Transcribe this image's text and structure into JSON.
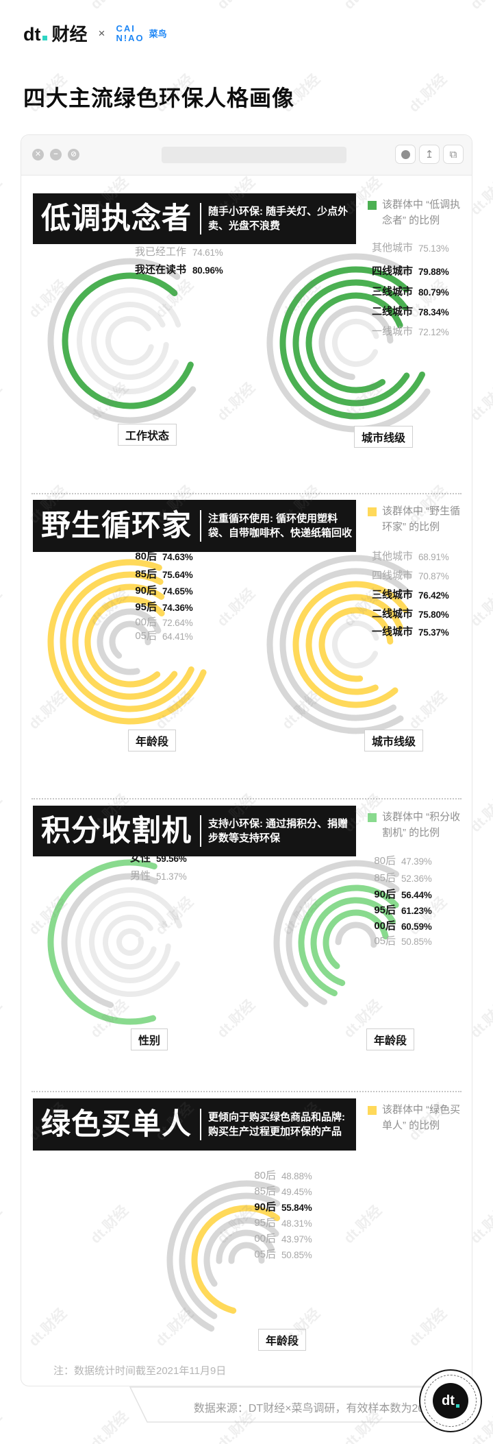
{
  "header": {
    "dt_letters": "dt",
    "dt_name": "财经",
    "separator": "×",
    "cainiao_line1": "CAI",
    "cainiao_line2": "N!AO",
    "cainiao_name": "菜鸟"
  },
  "title": "四大主流绿色环保人格画像",
  "browser_bar": {
    "close": "✕",
    "minimize": "−",
    "blocked": "⊘",
    "share": "↥",
    "tabs": "⧉"
  },
  "watermark_text": "dt.财经",
  "colors": {
    "green": "#4bb052",
    "light_green": "#89da8e",
    "yellow": "#ffd95a",
    "grey_ring": "#d7d7d7",
    "deco_ring": "#ebebeb",
    "black_box": "#141414",
    "teal": "#2fd5c3",
    "cainiao_blue": "#1d86f5"
  },
  "sections": [
    {
      "title": "低调执念者",
      "description": "随手小环保: 随手关灯、少点外卖、光盘不浪费",
      "legend": "该群体中 “低调执念者” 的比例",
      "accent_color": "#4bb052"
    },
    {
      "title": "野生循环家",
      "description": "注重循环使用: 循环使用塑料袋、自带咖啡杯、快递纸箱回收",
      "legend": "该群体中 “野生循环家” 的比例",
      "accent_color": "#ffd95a"
    },
    {
      "title": "积分收割机",
      "description": "支持小环保: 通过捐积分、捐赠步数等支持环保",
      "legend": "该群体中 “积分收割机” 的比例",
      "accent_color": "#89da8e"
    },
    {
      "title": "绿色买单人",
      "description": "更倾向于购买绿色商品和品牌: 购买生产过程更加环保的产品",
      "legend": "该群体中 “绿色买单人” 的比例",
      "accent_color": "#ffd95a"
    }
  ],
  "chart_data": [
    {
      "section": "低调执念者",
      "type": "radial-bar",
      "title": "工作状态",
      "unit": "%",
      "categories": [
        "我已经工作",
        "我还在读书"
      ],
      "values": [
        74.61,
        80.96
      ],
      "highlighted": [
        false,
        true
      ]
    },
    {
      "section": "低调执念者",
      "type": "radial-bar",
      "title": "城市线级",
      "unit": "%",
      "categories": [
        "其他城市",
        "四线城市",
        "三线城市",
        "二线城市",
        "一线城市"
      ],
      "values": [
        75.13,
        79.88,
        80.79,
        78.34,
        72.12
      ],
      "highlighted": [
        false,
        true,
        true,
        true,
        false
      ]
    },
    {
      "section": "野生循环家",
      "type": "radial-bar",
      "title": "年龄段",
      "unit": "%",
      "categories": [
        "80后",
        "85后",
        "90后",
        "95后",
        "00后",
        "05后"
      ],
      "values": [
        74.63,
        75.64,
        74.65,
        74.36,
        72.64,
        64.41
      ],
      "highlighted": [
        true,
        true,
        true,
        true,
        false,
        false
      ]
    },
    {
      "section": "野生循环家",
      "type": "radial-bar",
      "title": "城市线级",
      "unit": "%",
      "categories": [
        "其他城市",
        "四线城市",
        "三线城市",
        "二线城市",
        "一线城市"
      ],
      "values": [
        68.91,
        70.87,
        76.42,
        75.8,
        75.37
      ],
      "highlighted": [
        false,
        false,
        true,
        true,
        true
      ]
    },
    {
      "section": "积分收割机",
      "type": "radial-bar",
      "title": "性别",
      "unit": "%",
      "categories": [
        "女性",
        "男性"
      ],
      "values": [
        59.56,
        51.37
      ],
      "highlighted": [
        true,
        false
      ]
    },
    {
      "section": "积分收割机",
      "type": "radial-bar",
      "title": "年龄段",
      "unit": "%",
      "categories": [
        "80后",
        "85后",
        "90后",
        "95后",
        "00后",
        "05后"
      ],
      "values": [
        47.39,
        52.36,
        56.44,
        61.23,
        60.59,
        50.85
      ],
      "highlighted": [
        false,
        false,
        true,
        true,
        true,
        false
      ]
    },
    {
      "section": "绿色买单人",
      "type": "radial-bar",
      "title": "年龄段",
      "unit": "%",
      "categories": [
        "80后",
        "85后",
        "90后",
        "95后",
        "00后",
        "05后"
      ],
      "values": [
        48.88,
        49.45,
        55.84,
        48.31,
        43.97,
        50.85
      ],
      "highlighted": [
        false,
        false,
        true,
        false,
        false,
        false
      ]
    }
  ],
  "footer": {
    "note": "注：数据统计时间截至2021年11月9日",
    "source": "数据来源：DT财经×菜鸟调研，有效样本数为2001",
    "badge_text": "dt"
  }
}
